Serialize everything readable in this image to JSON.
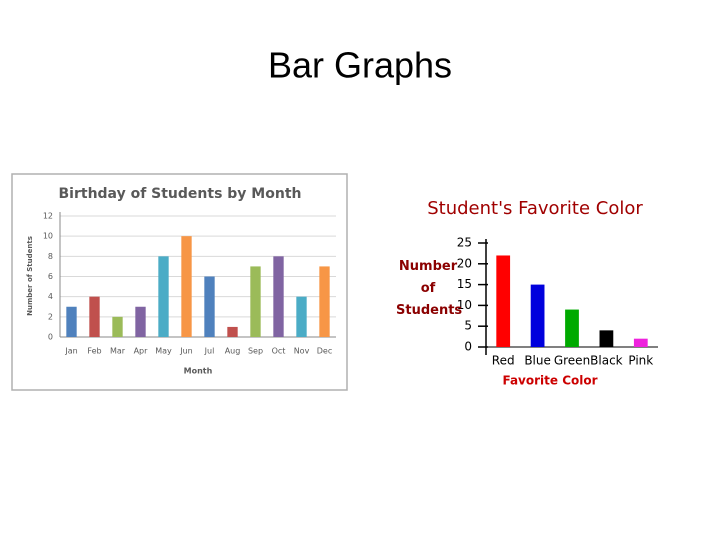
{
  "title": "Bar Graphs",
  "chart_data": [
    {
      "type": "bar",
      "title": "Birthday of Students by Month",
      "categories": [
        "Jan",
        "Feb",
        "Mar",
        "Apr",
        "May",
        "Jun",
        "Jul",
        "Aug",
        "Sep",
        "Oct",
        "Nov",
        "Dec"
      ],
      "values": [
        3,
        4,
        2,
        3,
        8,
        10,
        6,
        1,
        7,
        8,
        4,
        7
      ],
      "colors": [
        "#4f81bd",
        "#c0504d",
        "#9bbb59",
        "#8064a2",
        "#4bacc6",
        "#f79646",
        "#4f81bd",
        "#c0504d",
        "#9bbb59",
        "#8064a2",
        "#4bacc6",
        "#f79646"
      ],
      "ylim": [
        0,
        12
      ],
      "yticks": [
        0,
        2,
        4,
        6,
        8,
        10,
        12
      ],
      "ylabel": "Number of Students",
      "xlabel": "Month",
      "grid": true
    },
    {
      "type": "bar",
      "title": "Student's Favorite Color",
      "categories": [
        "Red",
        "Blue",
        "Green",
        "Black",
        "Pink"
      ],
      "values": [
        22,
        15,
        9,
        4,
        2
      ],
      "colors": [
        "#ff0000",
        "#0000dd",
        "#00aa00",
        "#000000",
        "#ee22dd"
      ],
      "ylim": [
        0,
        25
      ],
      "yticks": [
        0,
        5,
        10,
        15,
        20,
        25
      ],
      "ylabel": "Number of Students",
      "xlabel": "Favorite Color",
      "grid": false
    }
  ]
}
